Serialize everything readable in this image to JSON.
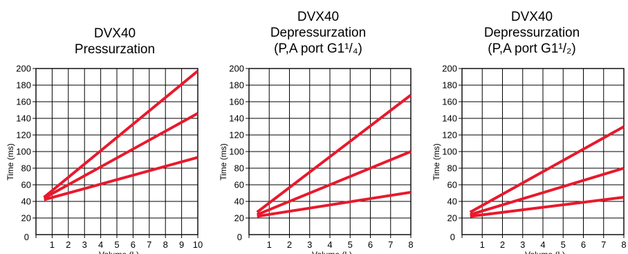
{
  "chart_data": [
    {
      "type": "line",
      "title_lines": [
        "DVX40",
        "Pressurzation"
      ],
      "xlabel": "Volume (L)",
      "ylabel": "Time (ms)",
      "xlim": [
        0,
        10
      ],
      "ylim": [
        0,
        200
      ],
      "xticks": [
        "0",
        "1",
        "2",
        "3",
        "4",
        "5",
        "6",
        "7",
        "8",
        "9",
        "10"
      ],
      "yticks": [
        "20",
        "40",
        "60",
        "80",
        "100",
        "120",
        "140",
        "160",
        "180",
        "200"
      ],
      "grid": true,
      "line_color": "#e8192c",
      "series": [
        {
          "x": [
            0.5,
            10
          ],
          "y": [
            45,
            197
          ]
        },
        {
          "x": [
            0.5,
            10
          ],
          "y": [
            44,
            146
          ]
        },
        {
          "x": [
            0.5,
            10
          ],
          "y": [
            42,
            93
          ]
        }
      ]
    },
    {
      "type": "line",
      "title_lines": [
        "DVX40",
        "Depressurzation",
        "(P,A port G1¹/₄)"
      ],
      "xlabel": "Volume (L)",
      "ylabel": "Time (ms)",
      "xlim": [
        0,
        8
      ],
      "ylim": [
        0,
        200
      ],
      "xticks": [
        "0",
        "1",
        "2",
        "3",
        "4",
        "5",
        "6",
        "7",
        "8"
      ],
      "yticks": [
        "20",
        "40",
        "60",
        "80",
        "100",
        "120",
        "140",
        "160",
        "180",
        "200"
      ],
      "grid": true,
      "line_color": "#e8192c",
      "series": [
        {
          "x": [
            0.4,
            8
          ],
          "y": [
            27,
            168
          ]
        },
        {
          "x": [
            0.4,
            8
          ],
          "y": [
            24,
            100
          ]
        },
        {
          "x": [
            0.4,
            8
          ],
          "y": [
            22,
            51
          ]
        }
      ]
    },
    {
      "type": "line",
      "title_lines": [
        "DVX40",
        "Depressurzation",
        "(P,A port G1¹/₂)"
      ],
      "xlabel": "Volume (L)",
      "ylabel": "Time (ms)",
      "xlim": [
        0,
        8
      ],
      "ylim": [
        0,
        200
      ],
      "xticks": [
        "0",
        "1",
        "2",
        "3",
        "4",
        "5",
        "6",
        "7",
        "8"
      ],
      "yticks": [
        "20",
        "40",
        "60",
        "80",
        "100",
        "120",
        "140",
        "160",
        "180",
        "200"
      ],
      "grid": true,
      "line_color": "#e8192c",
      "series": [
        {
          "x": [
            0.4,
            8
          ],
          "y": [
            27,
            130
          ]
        },
        {
          "x": [
            0.4,
            8
          ],
          "y": [
            24,
            80
          ]
        },
        {
          "x": [
            0.4,
            8
          ],
          "y": [
            22,
            45
          ]
        }
      ]
    }
  ]
}
